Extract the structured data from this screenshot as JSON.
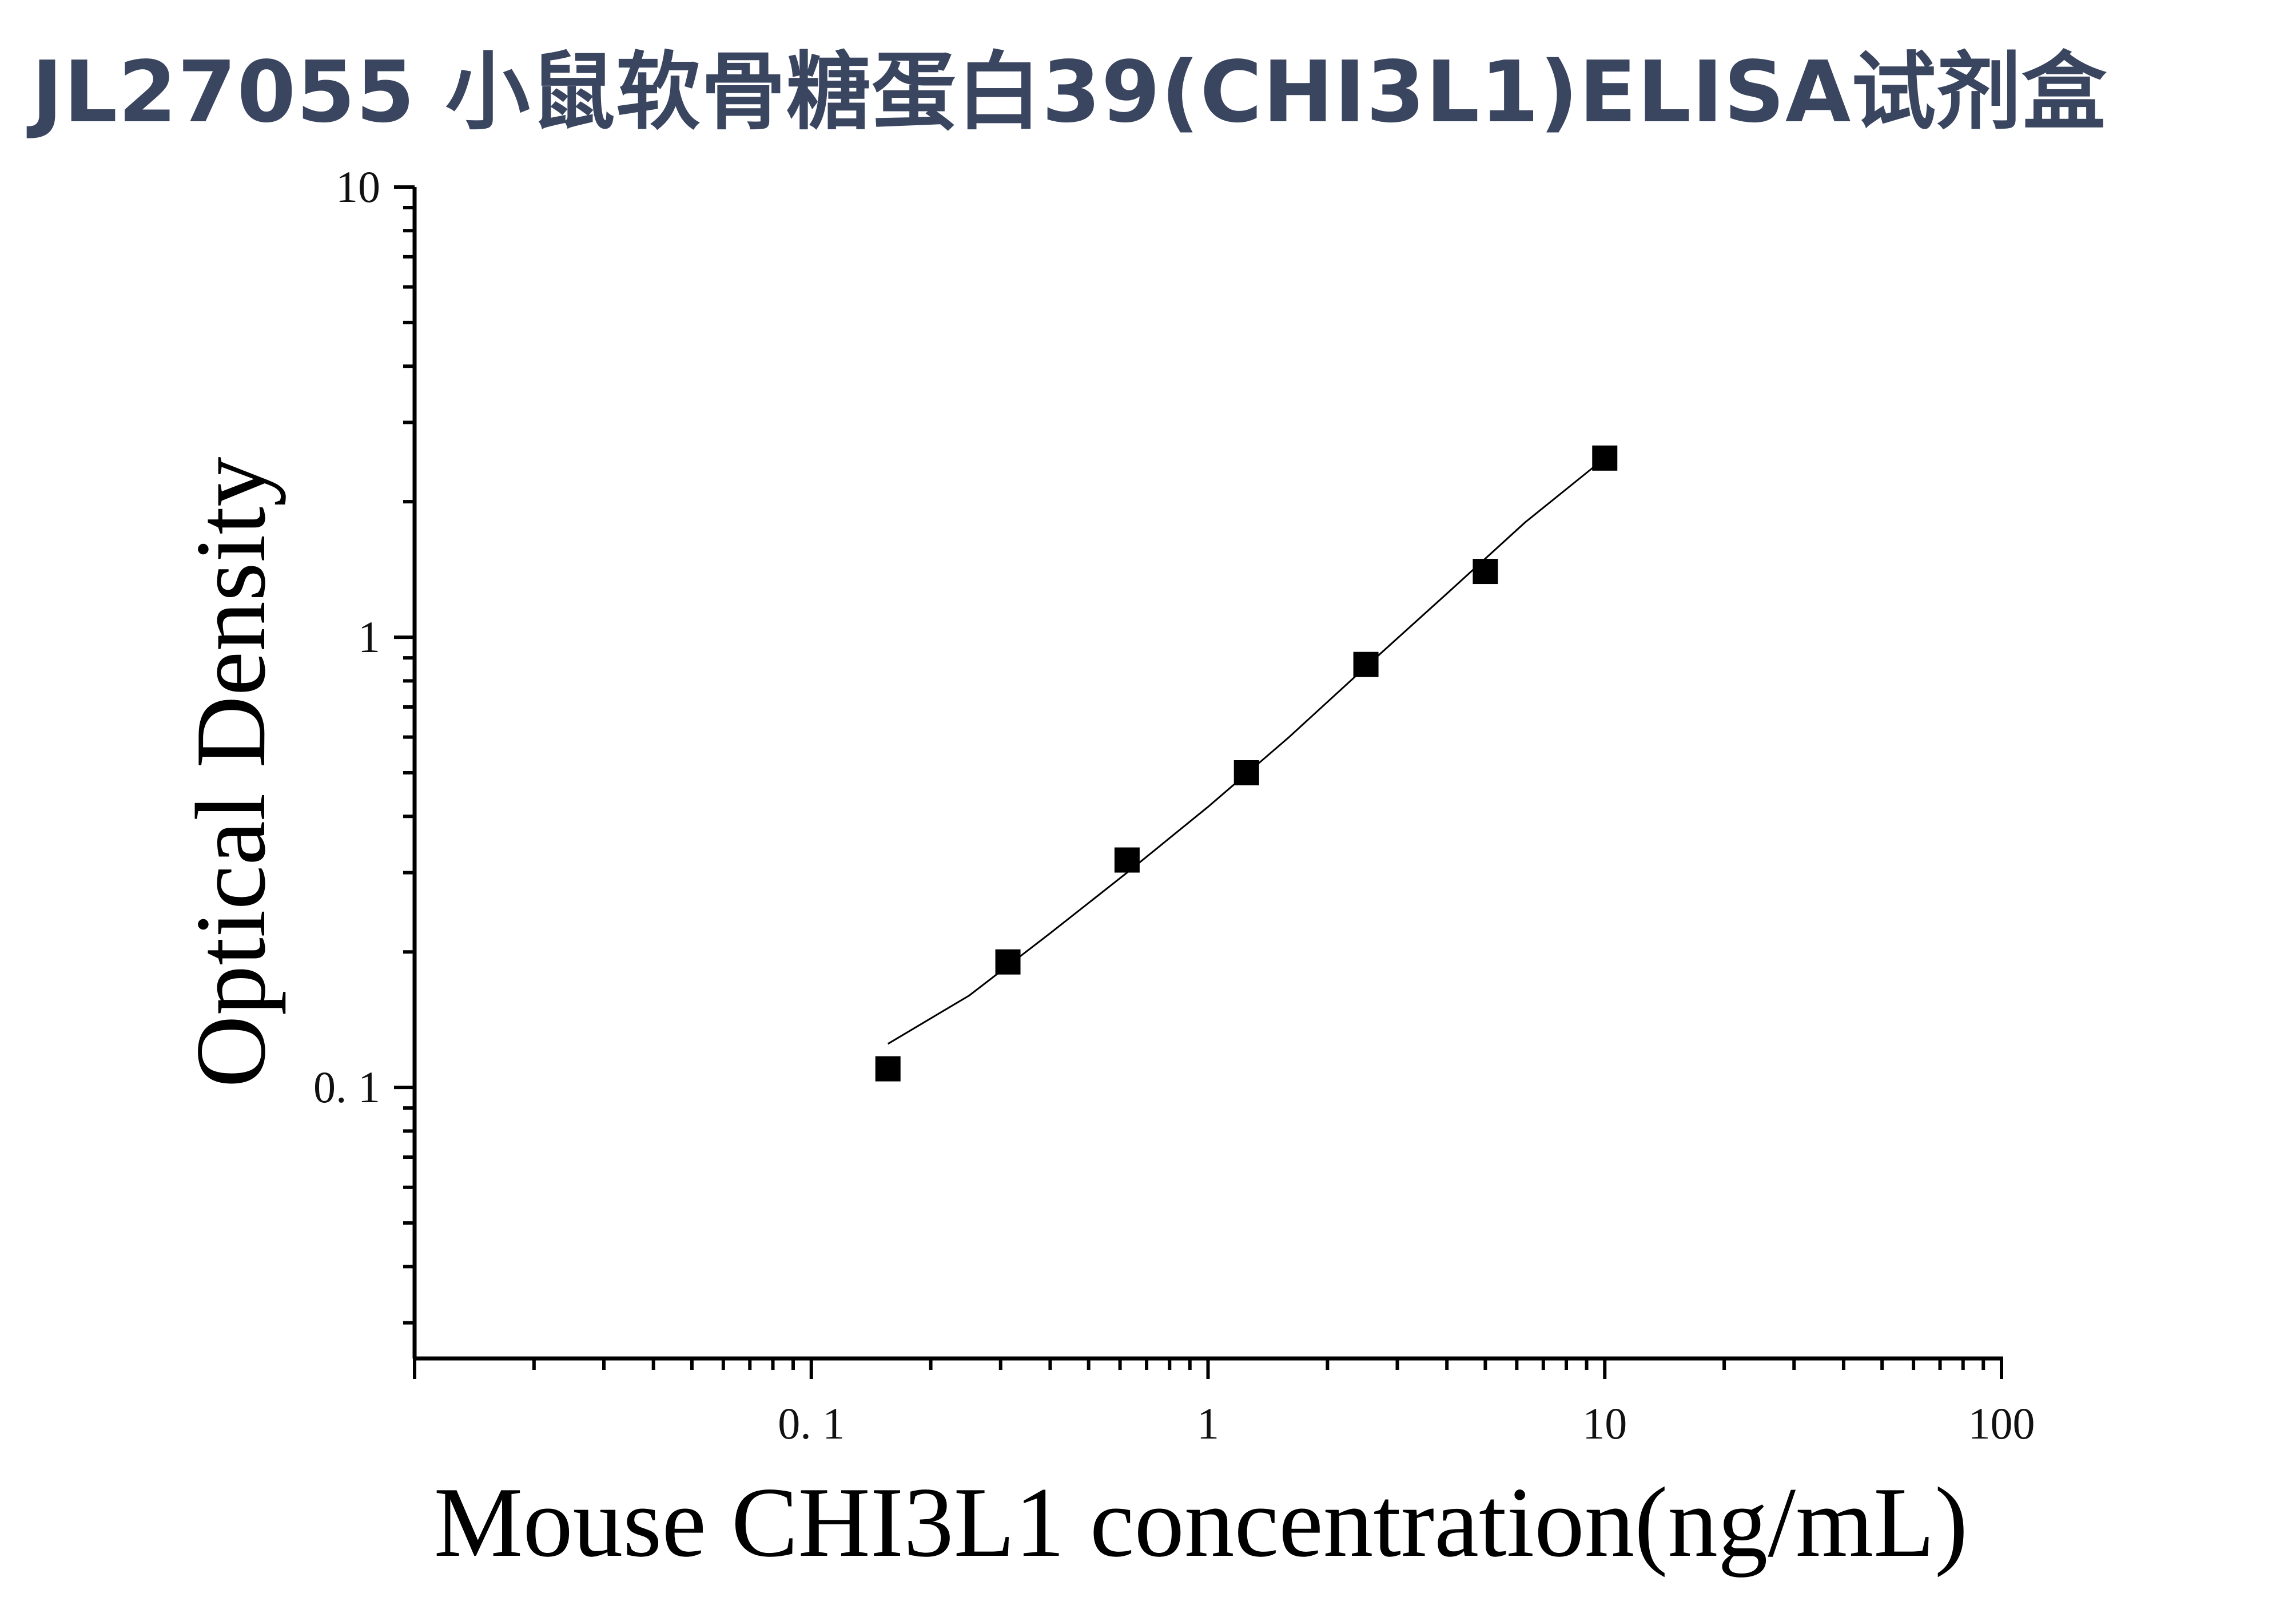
{
  "chart_data": {
    "type": "scatter",
    "title": "JL27055 小鼠软骨糖蛋白39(CHI3L1)ELISA试剂盒",
    "xlabel": "Mouse CHI3L1 concentration(ng/mL)",
    "ylabel": "Optical Density",
    "x_scale": "log",
    "y_scale": "log",
    "xlim": [
      0.01,
      100
    ],
    "ylim": [
      0.025,
      10
    ],
    "x_ticks": [
      {
        "value": 0.1,
        "label": "0. 1"
      },
      {
        "value": 1,
        "label": "1"
      },
      {
        "value": 10,
        "label": "10"
      },
      {
        "value": 100,
        "label": "100"
      }
    ],
    "y_ticks": [
      {
        "value": 0.1,
        "label": "0. 1"
      },
      {
        "value": 1,
        "label": "1"
      },
      {
        "value": 10,
        "label": "10"
      }
    ],
    "grid": false,
    "marker": "square",
    "color": "#000000",
    "points": [
      {
        "x": 0.156,
        "y": 0.11
      },
      {
        "x": 0.313,
        "y": 0.19
      },
      {
        "x": 0.625,
        "y": 0.32
      },
      {
        "x": 1.25,
        "y": 0.5
      },
      {
        "x": 2.5,
        "y": 0.87
      },
      {
        "x": 5,
        "y": 1.4
      },
      {
        "x": 10,
        "y": 2.5
      }
    ],
    "fit_line": [
      {
        "x": 0.156,
        "y": 0.125
      },
      {
        "x": 0.25,
        "y": 0.16
      },
      {
        "x": 0.4,
        "y": 0.22
      },
      {
        "x": 0.625,
        "y": 0.3
      },
      {
        "x": 1.0,
        "y": 0.42
      },
      {
        "x": 1.6,
        "y": 0.6
      },
      {
        "x": 2.5,
        "y": 0.86
      },
      {
        "x": 4.0,
        "y": 1.25
      },
      {
        "x": 6.3,
        "y": 1.8
      },
      {
        "x": 10,
        "y": 2.5
      }
    ]
  }
}
